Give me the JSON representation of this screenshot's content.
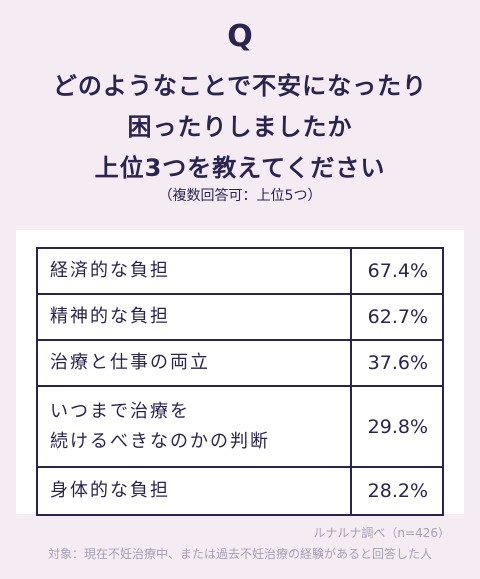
{
  "q_mark": "Q",
  "question_lines": [
    "どのようなことで不安になったり",
    "困ったりしましたか",
    "上位3つを教えてください"
  ],
  "sub_note": "（複数回答可：上位5つ）",
  "chart_data": {
    "type": "table",
    "rows": [
      {
        "label_lines": [
          "経済的な負担"
        ],
        "value": "67.4%"
      },
      {
        "label_lines": [
          "精神的な負担"
        ],
        "value": "62.7%"
      },
      {
        "label_lines": [
          "治療と仕事の両立"
        ],
        "value": "37.6%"
      },
      {
        "label_lines": [
          "いつまで治療を",
          "続けるべきなのかの判断"
        ],
        "value": "29.8%"
      },
      {
        "label_lines": [
          "身体的な負担"
        ],
        "value": "28.2%"
      }
    ]
  },
  "source": "ルナルナ調べ（n=426）",
  "target": "対象：現在不妊治療中、または過去不妊治療の経験があると回答した人",
  "colors": {
    "background": "#f4ecf2",
    "text": "#2b2350",
    "muted": "#a89fb3"
  }
}
